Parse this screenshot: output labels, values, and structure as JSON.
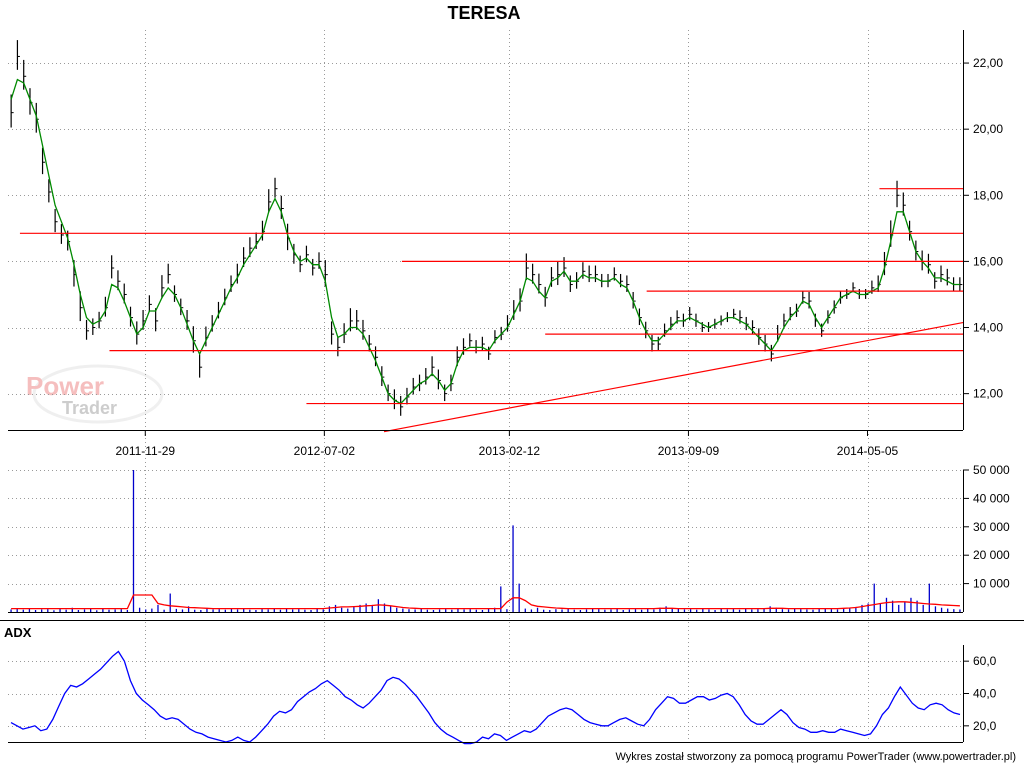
{
  "chart_data": [
    {
      "panel": "price",
      "type": "ohlc",
      "title": "TERESA",
      "x_tick_labels": [
        "2011-11-29",
        "2012-07-02",
        "2013-02-12",
        "2013-09-09",
        "2014-05-05"
      ],
      "x_domain_weeks": [
        0,
        160
      ],
      "x_tick_weeks": [
        23,
        53,
        84,
        114,
        144
      ],
      "ylim": [
        10.9,
        23.0
      ],
      "y_ticks": [
        12,
        14,
        16,
        18,
        20,
        22
      ],
      "y_tick_labels": [
        "12,00",
        "14,00",
        "16,00",
        "18,00",
        "20,00",
        "22,00"
      ],
      "grid": true,
      "series": [
        {
          "name": "",
          "style": "bars",
          "color": "#000000",
          "close": [
            20.5,
            22.2,
            21.6,
            20.8,
            20.3,
            19.0,
            18.1,
            17.2,
            16.8,
            16.6,
            15.6,
            14.6,
            13.9,
            14.0,
            14.2,
            14.6,
            15.8,
            15.4,
            15.0,
            14.3,
            13.8,
            14.2,
            14.7,
            14.2,
            15.2,
            15.6,
            15.0,
            14.6,
            14.2,
            13.6,
            12.8,
            13.7,
            14.1,
            14.5,
            14.9,
            15.3,
            15.6,
            16.1,
            16.4,
            16.6,
            16.9,
            17.8,
            18.2,
            17.6,
            16.7,
            16.2,
            15.9,
            16.2,
            15.8,
            16.0,
            15.6,
            13.8,
            13.4,
            13.8,
            14.2,
            14.2,
            13.9,
            13.5,
            13.1,
            12.5,
            12.0,
            11.8,
            11.6,
            11.9,
            12.2,
            12.3,
            12.5,
            12.8,
            12.4,
            12.0,
            12.3,
            13.1,
            13.4,
            13.6,
            13.4,
            13.5,
            13.2,
            13.7,
            13.8,
            14.1,
            14.5,
            14.8,
            15.8,
            15.6,
            15.3,
            14.9,
            15.5,
            15.6,
            15.8,
            15.3,
            15.4,
            15.7,
            15.6,
            15.6,
            15.4,
            15.4,
            15.6,
            15.4,
            15.3,
            14.8,
            14.3,
            13.9,
            13.5,
            13.5,
            13.9,
            14.1,
            14.3,
            14.2,
            14.4,
            14.2,
            14.0,
            14.0,
            14.1,
            14.2,
            14.3,
            14.4,
            14.3,
            14.1,
            14.0,
            13.7,
            13.5,
            13.2,
            13.8,
            14.2,
            14.4,
            14.5,
            14.9,
            14.8,
            14.2,
            13.9,
            14.3,
            14.6,
            14.9,
            15.0,
            15.2,
            15.0,
            15.0,
            15.2,
            15.3,
            15.9,
            16.8,
            18.0,
            17.7,
            16.9,
            16.3,
            16.0,
            15.9,
            15.4,
            15.6,
            15.5,
            15.3,
            15.3
          ],
          "range": [
            1.0,
            0.9,
            0.9,
            0.8,
            0.9,
            0.8,
            0.7,
            0.7,
            0.6,
            0.6,
            0.8,
            0.9,
            0.6,
            0.5,
            0.5,
            0.6,
            0.7,
            0.6,
            0.6,
            0.6,
            0.7,
            0.6,
            0.5,
            0.7,
            0.7,
            0.6,
            0.5,
            0.5,
            0.6,
            0.8,
            0.7,
            0.6,
            0.5,
            0.5,
            0.5,
            0.5,
            0.6,
            0.6,
            0.6,
            0.5,
            0.6,
            0.7,
            0.6,
            0.7,
            0.8,
            0.6,
            0.5,
            0.5,
            0.5,
            0.5,
            0.8,
            0.7,
            0.6,
            0.6,
            0.7,
            0.6,
            0.6,
            0.5,
            0.6,
            0.6,
            0.5,
            0.6,
            0.6,
            0.5,
            0.5,
            0.5,
            0.5,
            0.6,
            0.6,
            0.5,
            0.5,
            0.6,
            0.5,
            0.4,
            0.4,
            0.4,
            0.4,
            0.4,
            0.4,
            0.5,
            0.6,
            0.7,
            0.8,
            0.6,
            0.6,
            0.6,
            0.6,
            0.7,
            0.6,
            0.5,
            0.5,
            0.5,
            0.5,
            0.5,
            0.4,
            0.4,
            0.4,
            0.4,
            0.5,
            0.5,
            0.5,
            0.5,
            0.5,
            0.4,
            0.4,
            0.4,
            0.4,
            0.4,
            0.4,
            0.4,
            0.3,
            0.3,
            0.3,
            0.3,
            0.3,
            0.3,
            0.4,
            0.4,
            0.4,
            0.5,
            0.5,
            0.5,
            0.5,
            0.4,
            0.4,
            0.4,
            0.4,
            0.5,
            0.4,
            0.4,
            0.4,
            0.4,
            0.4,
            0.3,
            0.3,
            0.3,
            0.3,
            0.4,
            0.5,
            0.7,
            0.8,
            0.8,
            0.7,
            0.6,
            0.6,
            0.6,
            0.6,
            0.5,
            0.5,
            0.5,
            0.4,
            0.4
          ]
        },
        {
          "name": "",
          "style": "line",
          "color": "#008a00",
          "values": [
            20.9,
            21.5,
            21.4,
            20.9,
            20.4,
            19.5,
            18.6,
            17.7,
            17.2,
            16.7,
            15.9,
            15.0,
            14.3,
            14.1,
            14.2,
            14.5,
            15.3,
            15.2,
            14.8,
            14.3,
            13.8,
            14.0,
            14.5,
            14.5,
            14.9,
            15.2,
            15.0,
            14.6,
            14.1,
            13.6,
            13.2,
            13.6,
            14.0,
            14.4,
            14.8,
            15.2,
            15.5,
            15.9,
            16.2,
            16.5,
            16.8,
            17.5,
            17.9,
            17.5,
            16.8,
            16.3,
            16.0,
            16.1,
            15.9,
            15.9,
            15.4,
            14.3,
            13.7,
            13.8,
            14.0,
            14.0,
            13.8,
            13.4,
            13.0,
            12.5,
            12.0,
            11.8,
            11.7,
            11.9,
            12.1,
            12.3,
            12.4,
            12.6,
            12.4,
            12.1,
            12.3,
            12.9,
            13.3,
            13.4,
            13.4,
            13.4,
            13.3,
            13.6,
            13.8,
            14.0,
            14.4,
            14.8,
            15.5,
            15.4,
            15.1,
            14.9,
            15.4,
            15.5,
            15.7,
            15.4,
            15.4,
            15.6,
            15.5,
            15.5,
            15.4,
            15.4,
            15.5,
            15.3,
            15.2,
            14.8,
            14.3,
            13.9,
            13.6,
            13.6,
            13.8,
            14.0,
            14.2,
            14.2,
            14.3,
            14.2,
            14.1,
            14.0,
            14.1,
            14.2,
            14.3,
            14.3,
            14.2,
            14.1,
            13.9,
            13.7,
            13.5,
            13.3,
            13.6,
            14.0,
            14.3,
            14.5,
            14.8,
            14.7,
            14.3,
            14.0,
            14.3,
            14.6,
            14.9,
            15.0,
            15.1,
            15.0,
            15.0,
            15.1,
            15.2,
            15.8,
            16.6,
            17.5,
            17.5,
            16.9,
            16.3,
            16.0,
            15.8,
            15.5,
            15.5,
            15.4,
            15.3,
            15.3
          ]
        }
      ],
      "annotations": [
        {
          "kind": "hline",
          "color": "#ff0000",
          "y": 16.85,
          "x_weeks": [
            2,
            160
          ]
        },
        {
          "kind": "hline",
          "color": "#ff0000",
          "y": 13.3,
          "x_weeks": [
            17,
            160
          ]
        },
        {
          "kind": "hline",
          "color": "#ff0000",
          "y": 11.7,
          "x_weeks": [
            50,
            160
          ]
        },
        {
          "kind": "hline",
          "color": "#ff0000",
          "y": 16.0,
          "x_weeks": [
            66,
            160
          ]
        },
        {
          "kind": "hline",
          "color": "#ff0000",
          "y": 15.1,
          "x_weeks": [
            107,
            160
          ]
        },
        {
          "kind": "hline",
          "color": "#ff0000",
          "y": 13.8,
          "x_weeks": [
            90,
            160
          ]
        },
        {
          "kind": "hline",
          "color": "#ff0000",
          "y": 18.2,
          "x_weeks": [
            146,
            160
          ]
        },
        {
          "kind": "trendline",
          "color": "#ff0000",
          "from": [
            63,
            10.85
          ],
          "to": [
            160,
            14.15
          ]
        }
      ]
    },
    {
      "panel": "volume",
      "type": "bar",
      "x_domain_weeks": [
        0,
        160
      ],
      "ylim": [
        0,
        50000
      ],
      "y_ticks": [
        10000,
        20000,
        30000,
        40000,
        50000
      ],
      "y_tick_labels": [
        "10 000",
        "20 000",
        "30 000",
        "40 000",
        "50 000"
      ],
      "grid": true,
      "series": [
        {
          "name": "",
          "style": "bars",
          "color": "#0000cc",
          "values": [
            900,
            1100,
            800,
            1200,
            700,
            900,
            1000,
            600,
            1300,
            800,
            1500,
            700,
            900,
            1100,
            600,
            1200,
            800,
            900,
            1000,
            700,
            50000,
            1500,
            900,
            1200,
            2500,
            800,
            6500,
            1100,
            900,
            2000,
            800,
            700,
            1200,
            900,
            1000,
            800,
            1100,
            900,
            1200,
            800,
            700,
            1000,
            900,
            1100,
            800,
            1200,
            900,
            1000,
            800,
            700,
            1100,
            900,
            2000,
            2500,
            1500,
            1200,
            2000,
            2500,
            3000,
            2500,
            4500,
            3000,
            2000,
            1500,
            1200,
            1000,
            900,
            1100,
            800,
            700,
            900,
            1000,
            800,
            1200,
            900,
            1000,
            800,
            700,
            1200,
            1500,
            9000,
            1000,
            30500,
            10000,
            1200,
            900,
            1500,
            800,
            700,
            1000,
            900,
            1100,
            800,
            700,
            900,
            1200,
            1000,
            800,
            900,
            1100,
            700,
            900,
            1000,
            800,
            1200,
            900,
            1500,
            2000,
            1300,
            1100,
            900,
            1000,
            800,
            1200,
            900,
            700,
            1100,
            900,
            1000,
            800,
            1200,
            900,
            1000,
            1300,
            2000,
            1500,
            1000,
            900,
            1200,
            1000,
            900,
            800,
            1100,
            1200,
            1000,
            900,
            1300,
            1500,
            1800,
            2500,
            3000,
            10000,
            3000,
            5000,
            4000,
            2500,
            3500,
            5000,
            4000,
            2500,
            10000,
            2000,
            1500,
            1200,
            1000,
            900
          ]
        },
        {
          "name": "",
          "style": "line",
          "color": "#ff0000",
          "values": [
            1200,
            1200,
            1200,
            1200,
            1200,
            1200,
            1200,
            1200,
            1200,
            1200,
            1200,
            1200,
            1200,
            1200,
            1200,
            1200,
            1200,
            1200,
            1200,
            1200,
            6000,
            6000,
            6000,
            6000,
            3000,
            2500,
            2200,
            2000,
            1800,
            1600,
            1500,
            1400,
            1300,
            1200,
            1200,
            1200,
            1200,
            1200,
            1200,
            1200,
            1200,
            1200,
            1200,
            1200,
            1200,
            1200,
            1200,
            1200,
            1200,
            1200,
            1200,
            1200,
            1400,
            1600,
            1800,
            1800,
            1900,
            2000,
            2200,
            2300,
            2500,
            2400,
            2200,
            1900,
            1600,
            1400,
            1300,
            1200,
            1200,
            1200,
            1200,
            1200,
            1200,
            1200,
            1200,
            1200,
            1200,
            1200,
            1200,
            1200,
            1200,
            3500,
            5000,
            5000,
            4000,
            2500,
            2000,
            1800,
            1600,
            1400,
            1300,
            1200,
            1200,
            1200,
            1200,
            1200,
            1200,
            1200,
            1200,
            1200,
            1200,
            1200,
            1200,
            1200,
            1200,
            1200,
            1300,
            1300,
            1300,
            1200,
            1200,
            1200,
            1200,
            1200,
            1200,
            1200,
            1200,
            1200,
            1200,
            1200,
            1200,
            1200,
            1200,
            1200,
            1300,
            1300,
            1300,
            1200,
            1200,
            1200,
            1200,
            1200,
            1200,
            1200,
            1200,
            1200,
            1300,
            1400,
            1600,
            1900,
            2300,
            2600,
            3000,
            3300,
            3500,
            3600,
            3600,
            3400,
            3200,
            3000,
            2800,
            2700,
            2500,
            2400,
            2300,
            2200
          ]
        }
      ]
    },
    {
      "panel": "adx",
      "type": "line",
      "title": "ADX",
      "x_domain_weeks": [
        0,
        160
      ],
      "ylim": [
        10,
        70
      ],
      "y_ticks": [
        20,
        40,
        60
      ],
      "y_tick_labels": [
        "20,0",
        "40,0",
        "60,0"
      ],
      "grid": true,
      "series": [
        {
          "name": "",
          "color": "#0000ff",
          "values": [
            22,
            20,
            18,
            19,
            20,
            17,
            18,
            24,
            32,
            40,
            45,
            44,
            46,
            49,
            52,
            55,
            59,
            63,
            66,
            60,
            48,
            40,
            36,
            33,
            30,
            26,
            24,
            25,
            24,
            21,
            18,
            16,
            15,
            13,
            12,
            11,
            10,
            11,
            13,
            11,
            10,
            13,
            17,
            21,
            26,
            29,
            28,
            30,
            35,
            38,
            41,
            43,
            46,
            48,
            45,
            42,
            38,
            36,
            33,
            31,
            34,
            38,
            42,
            48,
            50,
            49,
            46,
            42,
            38,
            33,
            28,
            22,
            18,
            15,
            13,
            11,
            9,
            9,
            10,
            13,
            12,
            15,
            14,
            11,
            13,
            15,
            17,
            16,
            18,
            22,
            26,
            28,
            30,
            31,
            30,
            27,
            24,
            22,
            21,
            20,
            20,
            22,
            24,
            25,
            23,
            21,
            20,
            24,
            30,
            34,
            38,
            37,
            34,
            34,
            36,
            38,
            38,
            36,
            37,
            39,
            40,
            38,
            33,
            27,
            23,
            21,
            21,
            24,
            27,
            30,
            27,
            22,
            19,
            18,
            16,
            16,
            17,
            16,
            16,
            18,
            17,
            16,
            15,
            14,
            15,
            20,
            27,
            31,
            38,
            44,
            39,
            34,
            31,
            30,
            33,
            34,
            33,
            30,
            28,
            27
          ]
        }
      ]
    }
  ],
  "watermark": {
    "line1": "Power",
    "line2": "Trader"
  },
  "footer": "Wykres został stworzony za pomocą programu PowerTrader (www.powertrader.pl)"
}
